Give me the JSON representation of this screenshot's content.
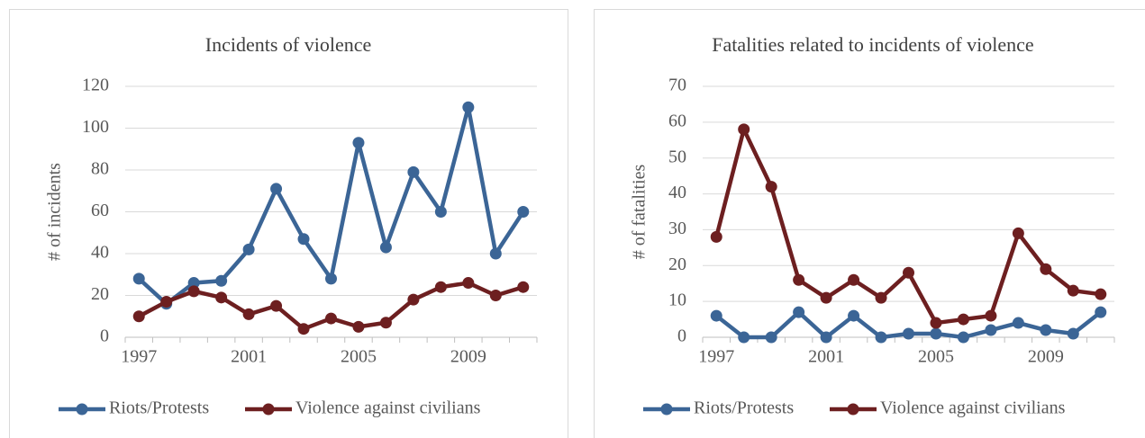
{
  "chart_data": [
    {
      "type": "line",
      "title": "Incidents of violence",
      "y_label": "# of incidents",
      "categories": [
        "1997",
        null,
        null,
        null,
        "2001",
        null,
        null,
        null,
        "2005",
        null,
        null,
        null,
        "2009",
        null,
        null
      ],
      "series": [
        {
          "name": "Riots/Protests",
          "color": "#3b6596",
          "values": [
            28,
            16,
            26,
            27,
            42,
            71,
            47,
            28,
            93,
            43,
            79,
            60,
            110,
            40,
            60
          ]
        },
        {
          "name": "Violence against civilians",
          "color": "#6d1f20",
          "values": [
            10,
            17,
            22,
            19,
            11,
            15,
            4,
            9,
            5,
            7,
            18,
            24,
            26,
            20,
            24
          ]
        }
      ],
      "ylim": [
        0,
        120
      ],
      "yticks": [
        0,
        20,
        40,
        60,
        80,
        100,
        120
      ],
      "grid": true,
      "legend": "bottom"
    },
    {
      "type": "line",
      "title": "Fatalities related to incidents of violence",
      "y_label": "# of fatalities",
      "categories": [
        "1997",
        null,
        null,
        null,
        "2001",
        null,
        null,
        null,
        "2005",
        null,
        null,
        null,
        "2009",
        null,
        null
      ],
      "series": [
        {
          "name": "Riots/Protests",
          "color": "#3b6596",
          "values": [
            6,
            0,
            0,
            7,
            0,
            6,
            0,
            1,
            1,
            0,
            2,
            4,
            2,
            1,
            7
          ]
        },
        {
          "name": "Violence against civilians",
          "color": "#6d1f20",
          "values": [
            28,
            58,
            42,
            16,
            11,
            16,
            11,
            18,
            4,
            5,
            6,
            29,
            19,
            13,
            12
          ]
        }
      ],
      "ylim": [
        0,
        70
      ],
      "yticks": [
        0,
        10,
        20,
        30,
        40,
        50,
        60,
        70
      ],
      "grid": true,
      "legend": "bottom"
    }
  ]
}
